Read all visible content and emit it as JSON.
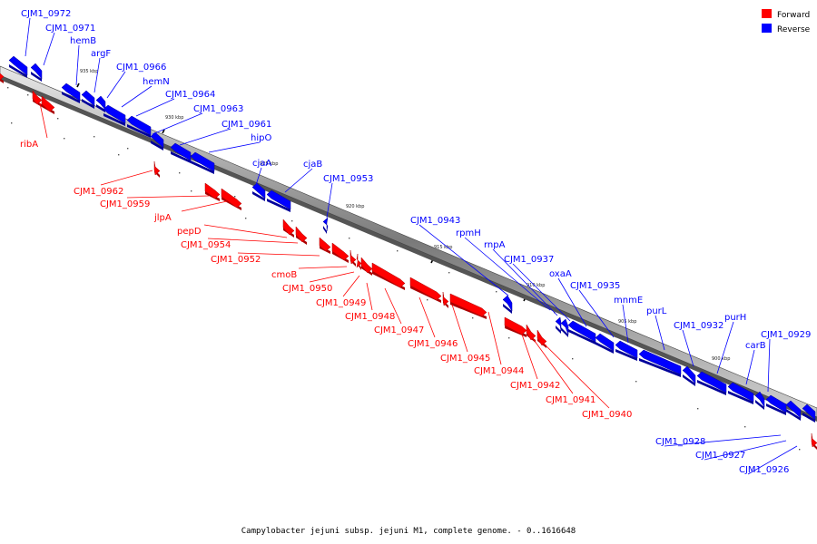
{
  "caption": "Campylobacter jejuni subsp. jejuni M1, complete genome. - 0..1616648",
  "colors": {
    "forward": "#ff0000",
    "reverse": "#0000ff",
    "forward_side": "#aa0000",
    "reverse_side": "#00009a"
  },
  "legend": [
    {
      "label": "Forward",
      "color": "#ff0000"
    },
    {
      "label": "Reverse",
      "color": "#0000ff"
    }
  ],
  "scale_ticks": [
    "935 kbp",
    "930 kbp",
    "925 kbp",
    "920 kbp",
    "915 kbp",
    "910 kbp",
    "905 kbp",
    "900 kbp"
  ],
  "forward_genes": [
    "ribA",
    "CJM1_0962",
    "CJM1_0959",
    "jlpA",
    "pepD",
    "CJM1_0954",
    "CJM1_0952",
    "cmoB",
    "CJM1_0950",
    "CJM1_0949",
    "CJM1_0948",
    "CJM1_0947",
    "CJM1_0946",
    "CJM1_0945",
    "CJM1_0944",
    "CJM1_0942",
    "CJM1_0941",
    "CJM1_0940"
  ],
  "reverse_genes": [
    "CJM1_0972",
    "CJM1_0971",
    "hemB",
    "argF",
    "CJM1_0966",
    "hemN",
    "CJM1_0964",
    "CJM1_0963",
    "CJM1_0961",
    "hipO",
    "cjaA",
    "cjaB",
    "CJM1_0953",
    "CJM1_0943",
    "rpmH",
    "rnpA",
    "CJM1_0937",
    "oxaA",
    "CJM1_0935",
    "mnmE",
    "purL",
    "CJM1_0932",
    "purH",
    "carB",
    "CJM1_0929",
    "CJM1_0928",
    "CJM1_0927",
    "CJM1_0926"
  ]
}
